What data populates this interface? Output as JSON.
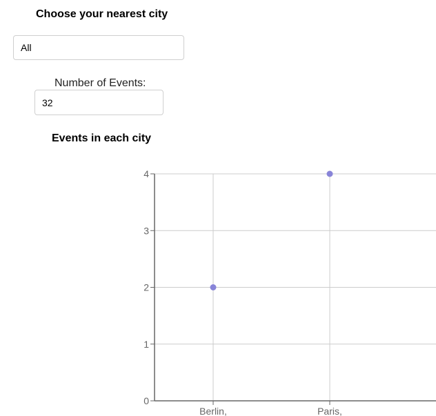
{
  "filters": {
    "city_heading": "Choose your nearest city",
    "city_value": "All",
    "events_label": "Number of Events:",
    "events_value": "32"
  },
  "chart_heading": "Events in each city",
  "colors": {
    "point": "#8884d8",
    "grid": "#cccccc",
    "axis": "#666666"
  },
  "chart_data": {
    "type": "scatter",
    "title": "",
    "xlabel": "",
    "ylabel": "",
    "categories": [
      "Berlin,",
      "Paris,"
    ],
    "values": [
      2,
      4
    ],
    "ylim": [
      0,
      4
    ],
    "yticks": [
      0,
      1,
      2,
      3,
      4
    ],
    "grid": true
  }
}
